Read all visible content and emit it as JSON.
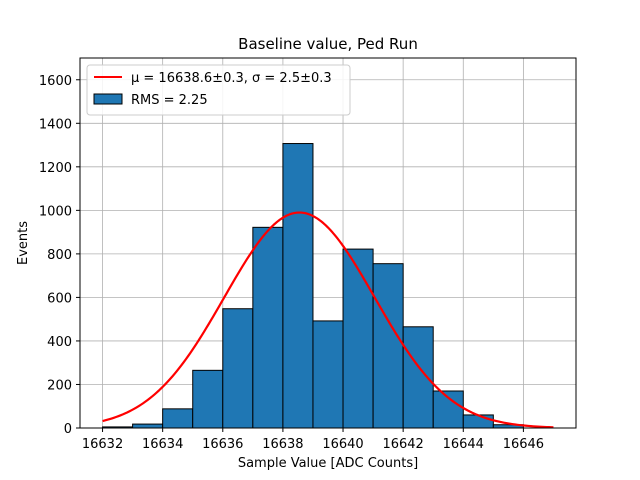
{
  "chart_data": {
    "type": "bar",
    "title": "Baseline value, Ped Run",
    "xlabel": "Sample Value [ADC Counts]",
    "ylabel": "Events",
    "xlim": [
      16631.25,
      16647.75
    ],
    "ylim": [
      0,
      1700
    ],
    "grid": true,
    "legend_position": "top-left",
    "bin_edges": [
      16632,
      16633,
      16634,
      16635,
      16636,
      16637,
      16638,
      16639,
      16640,
      16641,
      16642,
      16643,
      16644,
      16645,
      16646
    ],
    "values": [
      5,
      18,
      88,
      265,
      548,
      922,
      1307,
      492,
      822,
      755,
      465,
      170,
      60,
      15
    ],
    "x_ticks": [
      "16632",
      "16634",
      "16636",
      "16638",
      "16640",
      "16642",
      "16644",
      "16646"
    ],
    "y_ticks": [
      "0",
      "200",
      "400",
      "600",
      "800",
      "1000",
      "1200",
      "1400",
      "1600"
    ],
    "bar_color": "#1f77b4",
    "fit": {
      "type": "gaussian",
      "mu": 16638.55,
      "sigma": 2.5,
      "amplitude": 990,
      "x_range": [
        16632,
        16647
      ],
      "color": "#ff0000"
    },
    "legend": {
      "fit_label": "μ = 16638.6±0.3, σ = 2.5±0.3",
      "hist_label": "RMS = 2.25"
    }
  }
}
